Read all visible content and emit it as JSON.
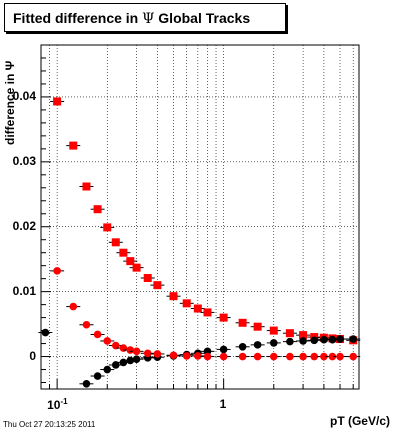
{
  "title": {
    "text": "Fitted difference in",
    "symbol": "Ψ",
    "suffix": "Global Tracks"
  },
  "datestamp": "Thu Oct 27 20:13:25 2011",
  "chart_data": {
    "type": "scatter",
    "xlabel": "pT (GeV/c)",
    "ylabel": "difference in Ψ",
    "x_scale": "log",
    "xlim": [
      0.08,
      6.5
    ],
    "ylim": [
      -0.005,
      0.048
    ],
    "grid": true,
    "yticks": [
      {
        "value": 0,
        "label": "0"
      },
      {
        "value": 0.01,
        "label": "0.01"
      },
      {
        "value": 0.02,
        "label": "0.02"
      },
      {
        "value": 0.03,
        "label": "0.03"
      },
      {
        "value": 0.04,
        "label": "0.04"
      }
    ],
    "xticks": [
      {
        "value": 0.1,
        "label": "10",
        "sup": "-1"
      },
      {
        "value": 1,
        "label": "1"
      }
    ],
    "colors": {
      "red": "#ff0000",
      "black": "#000000"
    },
    "series": [
      {
        "marker": "square",
        "color": "#ff0000",
        "x": [
          0.1,
          0.125,
          0.15,
          0.175,
          0.2,
          0.225,
          0.25,
          0.275,
          0.3,
          0.35,
          0.4,
          0.5,
          0.6,
          0.7,
          0.8,
          1.0,
          1.3,
          1.6,
          2.0,
          2.5,
          3.0,
          3.5,
          4.0,
          4.5,
          5.0,
          6.0
        ],
        "y": [
          0.0393,
          0.0325,
          0.0262,
          0.0227,
          0.0199,
          0.0176,
          0.016,
          0.0147,
          0.0137,
          0.0121,
          0.011,
          0.0093,
          0.0082,
          0.0074,
          0.0068,
          0.006,
          0.0052,
          0.0046,
          0.004,
          0.0036,
          0.0033,
          0.003,
          0.0029,
          0.0028,
          0.0027,
          0.0025
        ]
      },
      {
        "marker": "circle",
        "color": "#000000",
        "x": [
          0.085,
          0.15,
          0.175,
          0.2,
          0.225,
          0.25,
          0.275,
          0.3,
          0.35,
          0.4,
          0.5,
          0.6,
          0.7,
          0.8,
          1.0,
          1.3,
          1.6,
          2.0,
          2.5,
          3.0,
          3.5,
          4.0,
          4.5,
          5.0,
          6.0
        ],
        "y": [
          0.0037,
          -0.0042,
          -0.003,
          -0.002,
          -0.0013,
          -0.0009,
          -0.0006,
          -0.0004,
          -0.0002,
          -0.0001,
          0.0001,
          0.0003,
          0.0005,
          0.0008,
          0.0011,
          0.0015,
          0.0018,
          0.0021,
          0.0023,
          0.0024,
          0.0025,
          0.0026,
          0.0026,
          0.0027,
          0.0027
        ]
      },
      {
        "marker": "circle",
        "color": "#ff0000",
        "x": [
          0.1,
          0.125,
          0.15,
          0.175,
          0.2,
          0.225,
          0.25,
          0.275,
          0.3,
          0.35,
          0.4,
          0.5,
          0.6,
          0.7,
          0.8,
          1.0,
          1.3,
          1.6,
          2.0,
          2.5,
          3.0,
          3.5,
          4.0,
          4.5,
          5.0,
          6.0
        ],
        "y": [
          0.0132,
          0.0077,
          0.0049,
          0.0034,
          0.0024,
          0.0017,
          0.0013,
          0.001,
          0.0008,
          0.0005,
          0.0004,
          0.0002,
          0.0001,
          0.0001,
          0.0,
          0.0,
          0.0,
          0.0,
          0.0,
          0.0,
          0.0,
          0.0,
          0.0,
          0.0,
          0.0,
          0.0
        ]
      }
    ]
  }
}
